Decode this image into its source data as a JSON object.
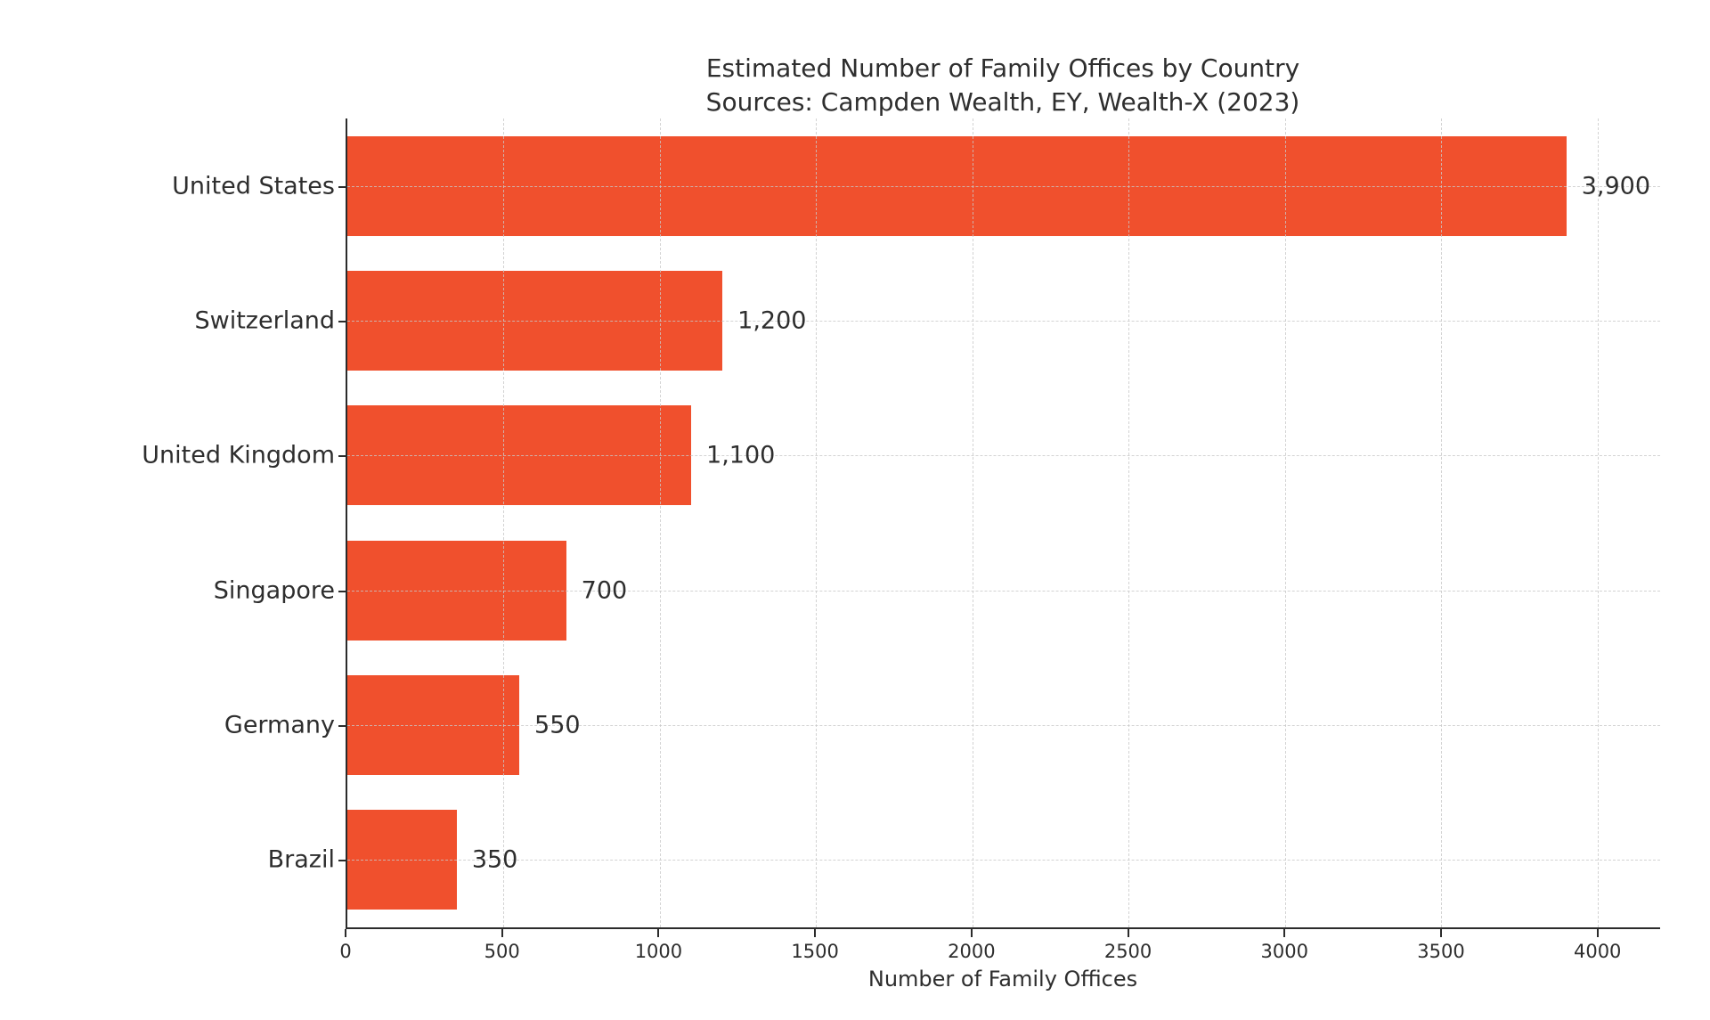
{
  "title": {
    "line1": "Estimated Number of Family Offices by Country",
    "line2": "Sources: Campden Wealth, EY, Wealth-X (2023)"
  },
  "chart_data": {
    "type": "bar",
    "orientation": "horizontal",
    "title": "Estimated Number of Family Offices by Country",
    "subtitle": "Sources: Campden Wealth, EY, Wealth-X (2023)",
    "categories": [
      "United States",
      "Switzerland",
      "United Kingdom",
      "Singapore",
      "Germany",
      "Brazil"
    ],
    "values": [
      3900,
      1200,
      1100,
      700,
      550,
      350
    ],
    "value_labels": [
      "3,900",
      "1,200",
      "1,100",
      "700",
      "550",
      "350"
    ],
    "xlabel": "Number of Family Offices",
    "ylabel": "",
    "xticks": [
      0,
      500,
      1000,
      1500,
      2000,
      2500,
      3000,
      3500,
      4000
    ],
    "xlim": [
      0,
      4200
    ],
    "grid": "dashed, vertical at x ticks and horizontal at category centers, drawn over bars",
    "legend": "none",
    "bar_color": "#F0502D",
    "text_color": "#2e2e2e",
    "grid_color": "#c9c9c9",
    "spine_color": "#2b2b2b",
    "background_color": "#ffffff"
  }
}
